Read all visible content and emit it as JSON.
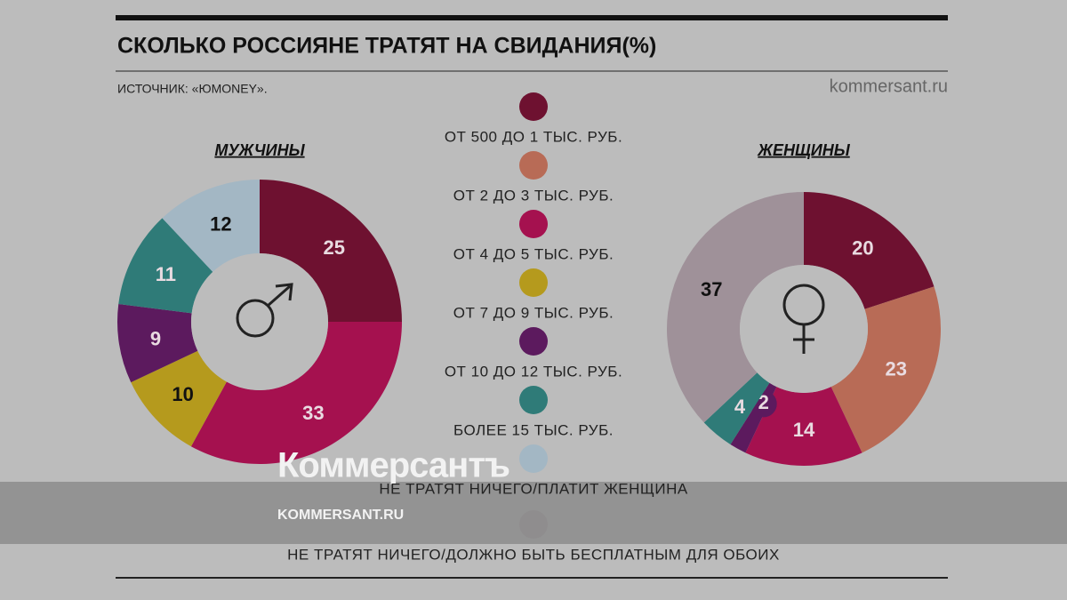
{
  "title": "СКОЛЬКО РОССИЯНЕ ТРАТЯТ НА СВИДАНИЯ(%)",
  "source": "ИСТОЧНИК: «ЮMONEY».",
  "site": "kommersant.ru",
  "watermark": {
    "brand": "Коммерсантъ",
    "site": "KOMMERSANT.RU"
  },
  "legend": {
    "labels": [
      "ОТ 500 ДО 1 ТЫС. РУБ.",
      "ОТ 2 ДО 3 ТЫС. РУБ.",
      "ОТ 4 ДО 5 ТЫС. РУБ.",
      "ОТ 7 ДО 9 ТЫС. РУБ.",
      "ОТ 10 ДО 12 ТЫС. РУБ.",
      "БОЛЕЕ 15 ТЫС. РУБ.",
      "НЕ ТРАТЯТ НИЧЕГО/ПЛАТИТ ЖЕНЩИНА",
      "НЕ ТРАТЯТ НИЧЕГО/ДОЛЖНО БЫТЬ БЕСПЛАТНЫМ ДЛЯ ОБОИХ"
    ],
    "colors": [
      "#6e1130",
      "#b86b56",
      "#a5114f",
      "#b59a1d",
      "#5c1a5e",
      "#2f7b78",
      "#a3b7c4",
      "#9f9199"
    ]
  },
  "chart_data": [
    {
      "type": "pie",
      "title": "МУЖЧИНЫ",
      "values": [
        25,
        33,
        10,
        9,
        11,
        12
      ],
      "colors": [
        "#6e1130",
        "#a5114f",
        "#b59a1d",
        "#5c1a5e",
        "#2f7b78",
        "#a3b7c4"
      ],
      "label_colors": [
        "#e9dbe1",
        "#e9dbe1",
        "#111111",
        "#e9dbe1",
        "#e9dbe1",
        "#111111"
      ]
    },
    {
      "type": "pie",
      "title": "ЖЕНЩИНЫ",
      "values": [
        20,
        23,
        14,
        2,
        4,
        37
      ],
      "colors": [
        "#6e1130",
        "#b86b56",
        "#a5114f",
        "#5c1a5e",
        "#2f7b78",
        "#9f9199"
      ],
      "label_colors": [
        "#e9dbe1",
        "#e9dbe1",
        "#e9dbe1",
        "#e9dbe1",
        "#e9dbe1",
        "#111111"
      ]
    }
  ]
}
